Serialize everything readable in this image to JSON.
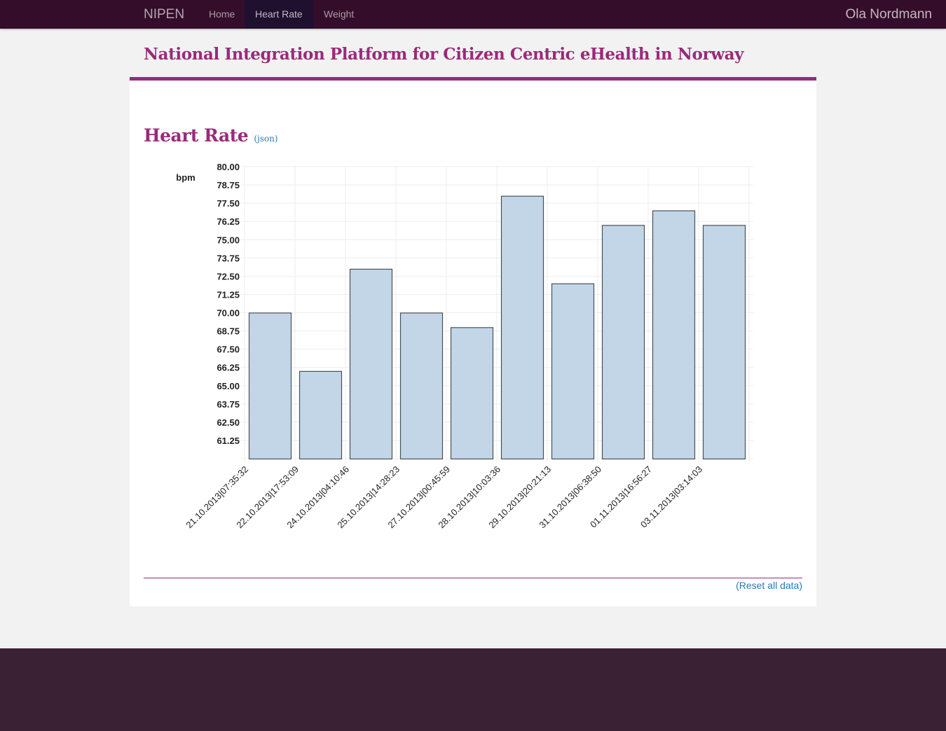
{
  "nav": {
    "brand": "NIPEN",
    "items": [
      {
        "label": "Home"
      },
      {
        "label": "Heart Rate"
      },
      {
        "label": "Weight"
      }
    ],
    "active_index": 1,
    "user": "Ola Nordmann"
  },
  "header": {
    "title": "National Integration Platform for Citizen Centric eHealth in Norway"
  },
  "section": {
    "title": "Heart Rate",
    "json_link": "(json)"
  },
  "footer_links": {
    "reset": "(Reset all data)"
  },
  "colors": {
    "brand_purple": "#9a2a7a",
    "navbar": "#340d2a",
    "bar_fill": "#c2d6e8",
    "bar_stroke": "#4a5058",
    "link": "#2a7ab5"
  },
  "chart_data": {
    "type": "bar",
    "title": "",
    "xlabel": "",
    "ylabel": "bpm",
    "ylim": [
      60,
      80
    ],
    "yticks": [
      "61.25",
      "62.50",
      "63.75",
      "65.00",
      "66.25",
      "67.50",
      "68.75",
      "70.00",
      "71.25",
      "72.50",
      "73.75",
      "75.00",
      "76.25",
      "77.50",
      "78.75",
      "80.00"
    ],
    "grid": true,
    "categories": [
      "21.10.2013|07:35:32",
      "22.10.2013|17:53:09",
      "24.10.2013|04:10:46",
      "25.10.2013|14:28:23",
      "27.10.2013|00:45:59",
      "28.10.2013|10:03:36",
      "29.10.2013|20:21:13",
      "31.10.2013|06:38:50",
      "01.11.2013|16:56:27",
      "03.11.2013|03:14:03"
    ],
    "values": [
      70,
      66,
      73,
      70,
      69,
      78,
      72,
      76,
      77,
      76
    ]
  }
}
